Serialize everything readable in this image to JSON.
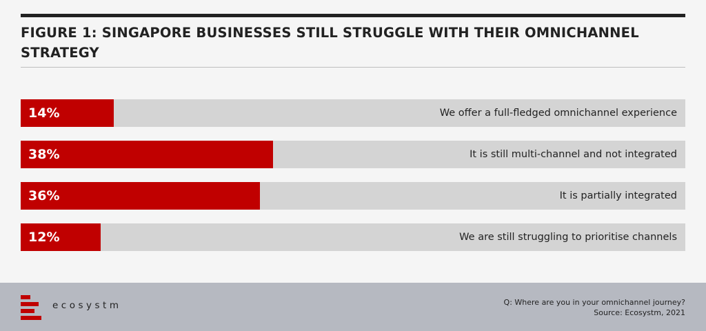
{
  "title": "FIGURE 1: SINGAPORE BUSINESSES STILL STRUGGLE WITH THEIR OMNICHANNEL STRATEGY",
  "colors": {
    "bar_fill": "#c00000",
    "bar_track": "#d4d4d4",
    "footer_bg": "#b6b9c1",
    "text": "#222222"
  },
  "chart_data": {
    "type": "bar",
    "orientation": "horizontal",
    "categories": [
      "We offer a full-fledged omnichannel experience",
      "It is still multi-channel and not integrated",
      "It is partially integrated",
      "We are still struggling to prioritise channels"
    ],
    "values": [
      14,
      38,
      36,
      12
    ],
    "value_labels": [
      "14%",
      "38%",
      "36%",
      "12%"
    ],
    "xlim": [
      0,
      100
    ],
    "grid": false
  },
  "footer": {
    "logo_text": "ecosystm",
    "logo_icon": "ecosystm-logo-icon",
    "question": "Q: Where are you in your omnichannel journey?",
    "source": "Source: Ecosystm, 2021"
  }
}
